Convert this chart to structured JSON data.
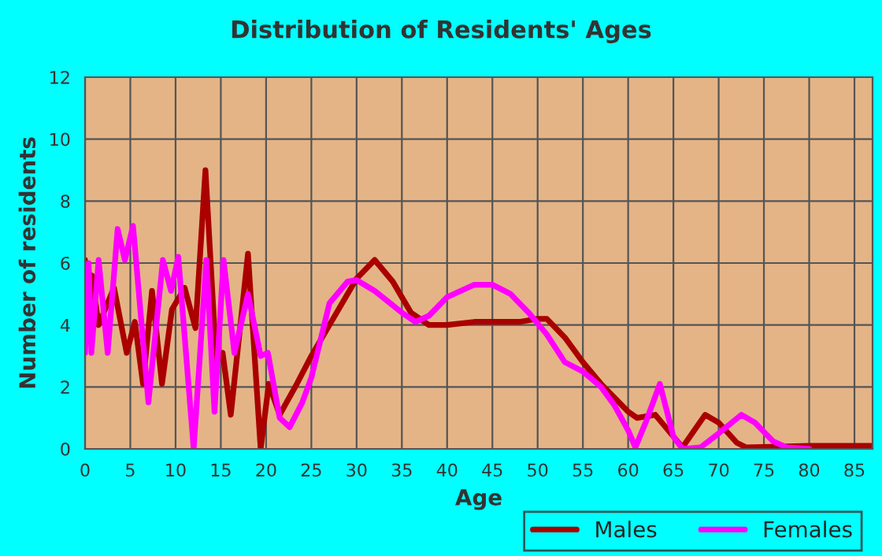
{
  "chart_data": {
    "type": "line",
    "title": "Distribution of Residents' Ages",
    "xlabel": "Age",
    "ylabel": "Number of residents",
    "xlim": [
      0,
      87
    ],
    "xticks": [
      0,
      5,
      10,
      15,
      20,
      25,
      30,
      35,
      40,
      45,
      50,
      55,
      60,
      65,
      70,
      75,
      80,
      85
    ],
    "ylim": [
      0,
      12
    ],
    "yticks": [
      0,
      2,
      4,
      6,
      8,
      10,
      12
    ],
    "grid": true,
    "legend": "bottom right",
    "line_style": "solid",
    "marker": "none",
    "series": [
      {
        "name": "Males",
        "color": "#aa0000",
        "x": [
          0,
          0.3,
          0.75,
          1.5,
          3.2,
          4.6,
          5.5,
          6.4,
          7.4,
          8.5,
          9.6,
          11,
          12.2,
          13.3,
          14.5,
          15.2,
          16.1,
          18,
          19.4,
          20.3,
          21.5,
          23.4,
          25,
          28,
          30,
          32,
          34,
          36,
          38,
          40,
          43,
          48,
          50,
          51,
          53,
          55,
          57,
          58,
          60,
          61,
          63,
          64,
          66,
          68.5,
          70,
          72,
          73,
          80,
          87
        ],
        "values": [
          6.1,
          4,
          5.6,
          4,
          5.2,
          3.1,
          4.1,
          2.1,
          5.1,
          2.1,
          4.5,
          5.2,
          3.9,
          9,
          2.8,
          3.1,
          1.1,
          6.3,
          0,
          2.1,
          1.1,
          2.1,
          3,
          4.5,
          5.5,
          6.1,
          5.4,
          4.4,
          4,
          4,
          4.1,
          4.1,
          4.2,
          4.2,
          3.6,
          2.8,
          2.1,
          1.8,
          1.2,
          1,
          1.1,
          0.75,
          0.05,
          1.1,
          0.85,
          0.2,
          0.05,
          0.1,
          0.1
        ]
      },
      {
        "name": "Females",
        "color": "#ff00ff",
        "x": [
          0,
          0.4,
          0.7,
          1.5,
          2.5,
          3.6,
          4.4,
          5.3,
          7,
          8.6,
          9.5,
          10.3,
          12,
          13.4,
          14.3,
          15.3,
          16.5,
          18,
          19.4,
          20.2,
          21.5,
          22.6,
          24,
          25,
          27,
          29,
          30,
          32,
          35,
          36.5,
          38,
          40,
          43,
          45,
          47,
          49,
          51,
          53,
          55,
          57,
          58.5,
          60,
          60.8,
          62,
          63.5,
          65,
          66,
          68,
          70,
          72.5,
          74,
          76,
          77.5,
          80
        ],
        "values": [
          3.1,
          6,
          3.1,
          6.1,
          3.1,
          7.1,
          6.1,
          7.2,
          1.5,
          6.1,
          5.1,
          6.2,
          0,
          6.1,
          1.2,
          6.1,
          3.1,
          5,
          3,
          3.1,
          1,
          0.7,
          1.5,
          2.3,
          4.7,
          5.4,
          5.45,
          5.1,
          4.4,
          4.1,
          4.3,
          4.9,
          5.3,
          5.3,
          5,
          4.4,
          3.7,
          2.8,
          2.5,
          2,
          1.4,
          0.6,
          0.05,
          0.9,
          2.1,
          0.4,
          0,
          0.05,
          0.5,
          1.1,
          0.85,
          0.25,
          0.05,
          0
        ]
      }
    ]
  }
}
